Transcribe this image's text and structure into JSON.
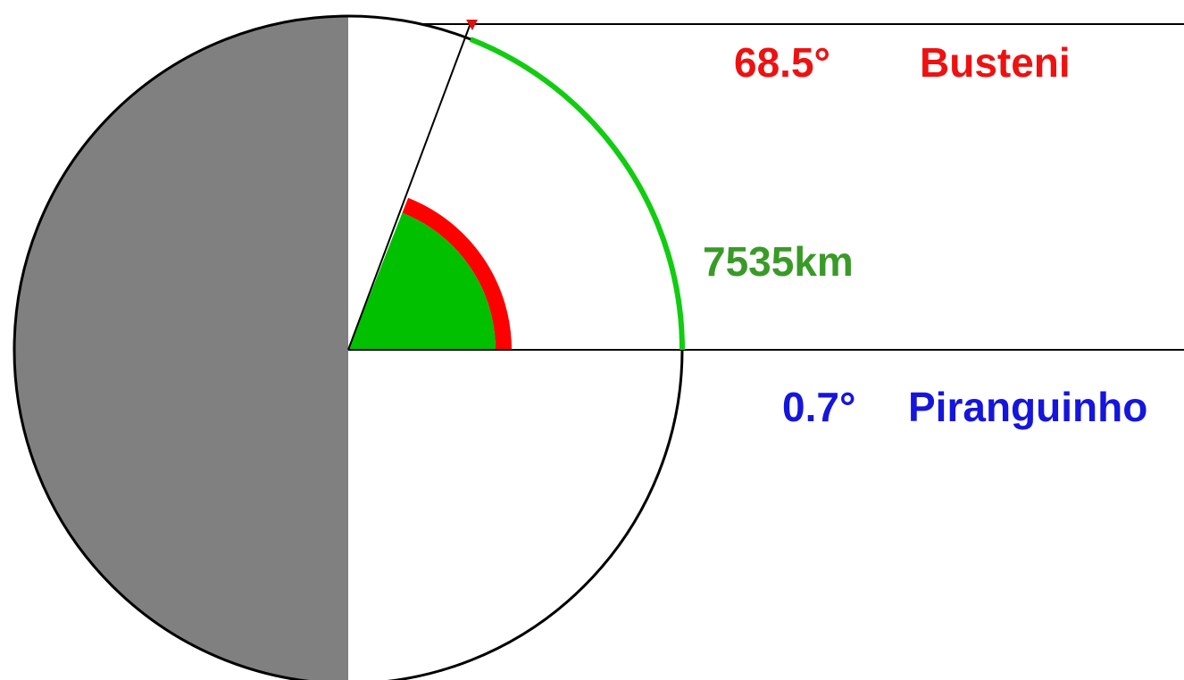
{
  "labels": {
    "top_angle": "68.5°",
    "top_place": "Busteni",
    "arc_length": "7535km",
    "bottom_angle": "0.7°",
    "bottom_place": "Piranguinho"
  },
  "figure": {
    "angle_deg": 68.5,
    "base_angle_deg": 0.7,
    "arc_length_km": 7535
  },
  "colors": {
    "top_text": "#ee1111",
    "bottom_text": "#1515dd",
    "arc_text": "#3a9a28",
    "night_fill": "#808080",
    "sector_fill": "#00c000",
    "angle_band": "#ff0000",
    "arc_stroke": "#11cc11",
    "outline": "#000000"
  }
}
